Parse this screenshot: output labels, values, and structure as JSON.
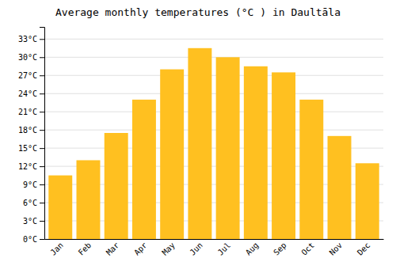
{
  "chart_data": {
    "type": "bar",
    "title": "Average monthly temperatures (°C ) in Daultāla",
    "categories": [
      "Jan",
      "Feb",
      "Mar",
      "Apr",
      "May",
      "Jun",
      "Jul",
      "Aug",
      "Sep",
      "Oct",
      "Nov",
      "Dec"
    ],
    "values": [
      10.5,
      13.0,
      17.5,
      23.0,
      28.0,
      31.5,
      30.0,
      28.5,
      27.5,
      23.0,
      17.0,
      12.5
    ],
    "color": "#FFC020",
    "ylim": [
      0,
      35
    ],
    "yticks": [
      {
        "value": 0,
        "label": "0°C"
      },
      {
        "value": 3,
        "label": "3°C"
      },
      {
        "value": 6,
        "label": "6°C"
      },
      {
        "value": 9,
        "label": "9°C"
      },
      {
        "value": 12,
        "label": "12°C"
      },
      {
        "value": 15,
        "label": "15°C"
      },
      {
        "value": 18,
        "label": "18°C"
      },
      {
        "value": 21,
        "label": "21°C"
      },
      {
        "value": 24,
        "label": "24°C"
      },
      {
        "value": 27,
        "label": "27°C"
      },
      {
        "value": 30,
        "label": "30°C"
      },
      {
        "value": 33,
        "label": "33°C"
      }
    ],
    "grid": true
  }
}
